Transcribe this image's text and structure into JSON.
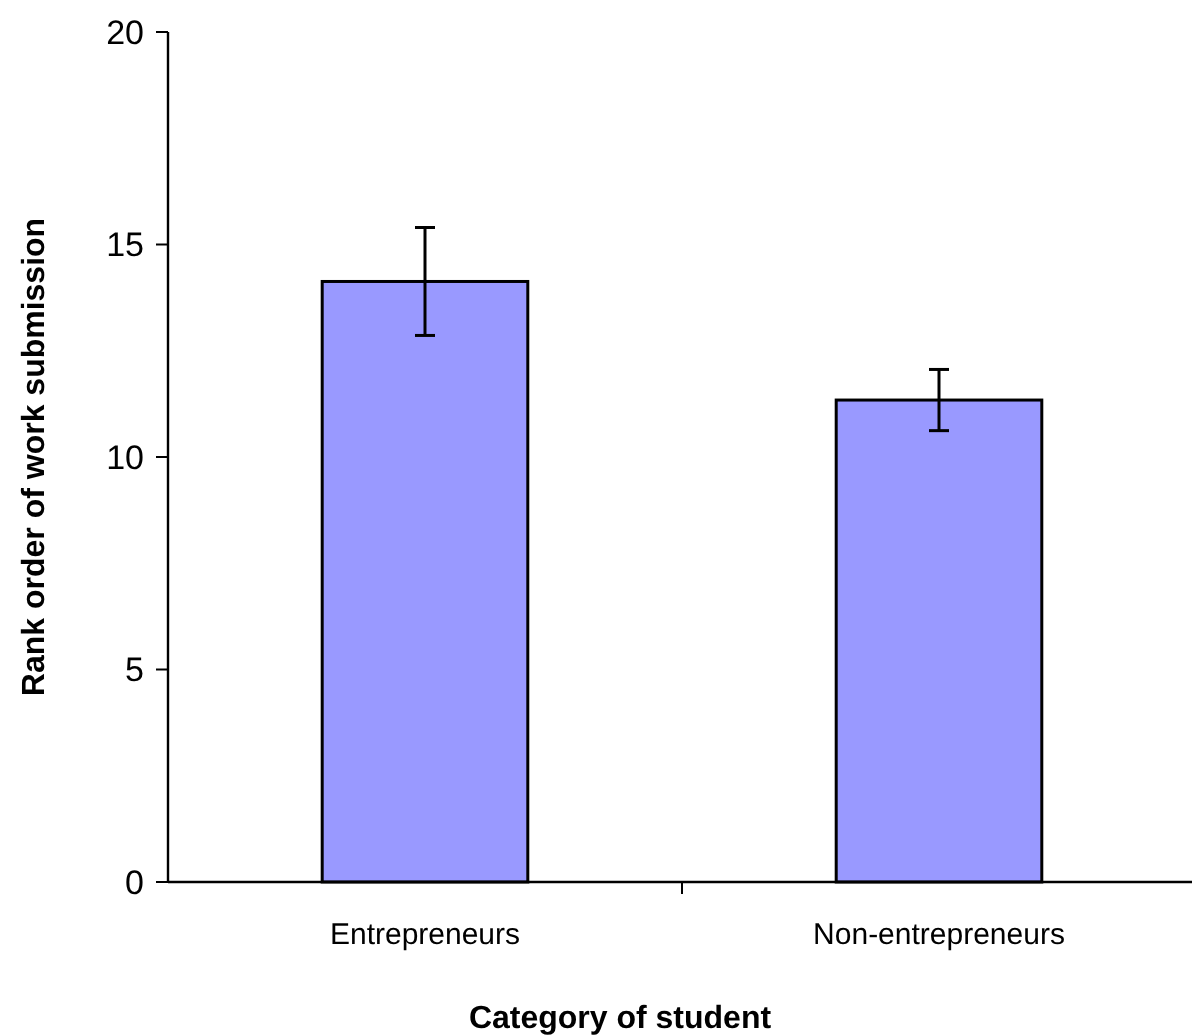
{
  "chart_data": {
    "type": "bar",
    "xlabel": "Category of student",
    "ylabel": "Rank order of work submission",
    "categories": [
      "Entrepreneurs",
      "Non-entrepreneurs"
    ],
    "values": [
      14.13,
      11.34
    ],
    "errors": [
      1.27,
      0.72
    ],
    "color": "#9999ff",
    "ylim": [
      0,
      20
    ],
    "yticks": [
      0,
      5,
      10,
      15,
      20
    ],
    "grid": false
  }
}
